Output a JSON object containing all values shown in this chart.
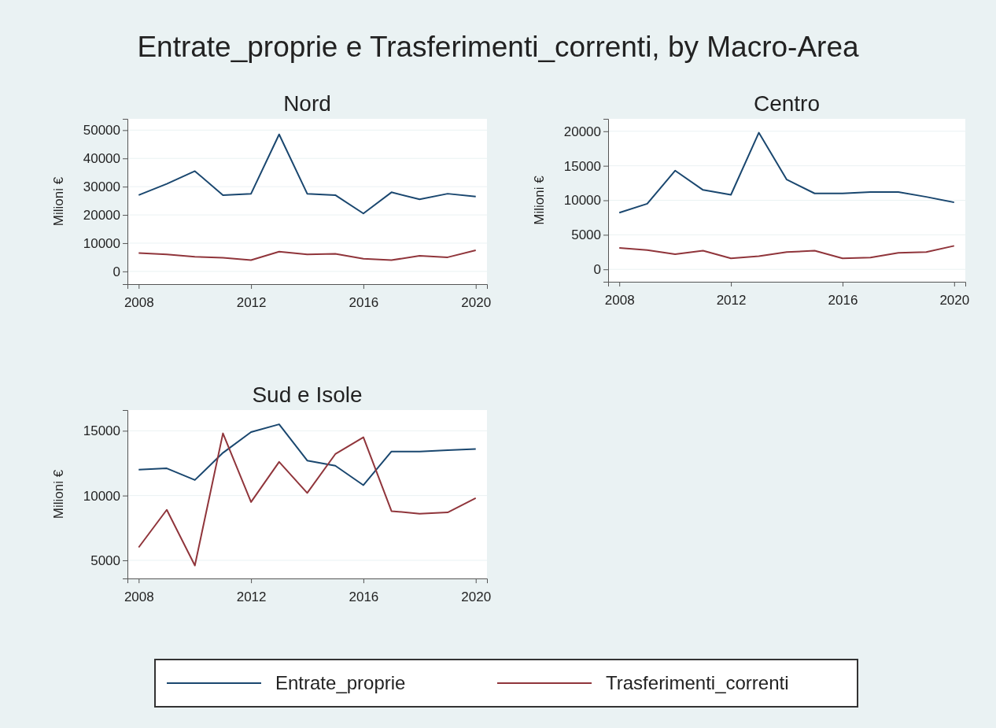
{
  "chart_data": [
    {
      "type": "line",
      "title": "Nord",
      "ylabel": "Milioni €",
      "annotations": [
        "Entrate_proprie e Trasferimenti_correnti, by Macro-Area"
      ],
      "x": [
        2008,
        2009,
        2010,
        2011,
        2012,
        2013,
        2014,
        2015,
        2016,
        2017,
        2018,
        2019,
        2020
      ],
      "xlim": [
        2007.6,
        2020.4
      ],
      "xticks": [
        2008,
        2012,
        2016,
        2020
      ],
      "ylim": [
        -4500,
        54000
      ],
      "yticks": [
        0,
        10000,
        20000,
        30000,
        40000,
        50000
      ],
      "grid": "y",
      "legend": "bottom",
      "series": [
        {
          "name": "Entrate_proprie",
          "color": "#1a476f",
          "values": [
            27000,
            31000,
            35500,
            27000,
            27500,
            48500,
            27500,
            27000,
            20500,
            28000,
            25500,
            27500,
            26500
          ]
        },
        {
          "name": "Trasferimenti_correnti",
          "color": "#90353b",
          "values": [
            6500,
            6000,
            5200,
            4800,
            4000,
            7000,
            6000,
            6200,
            4500,
            4000,
            5500,
            5000,
            7500
          ]
        }
      ]
    },
    {
      "type": "line",
      "title": "Centro",
      "ylabel": "Milioni €",
      "x": [
        2008,
        2009,
        2010,
        2011,
        2012,
        2013,
        2014,
        2015,
        2016,
        2017,
        2018,
        2019,
        2020
      ],
      "xlim": [
        2007.6,
        2020.4
      ],
      "xticks": [
        2008,
        2012,
        2016,
        2020
      ],
      "ylim": [
        -1800,
        21800
      ],
      "yticks": [
        0,
        5000,
        10000,
        15000,
        20000
      ],
      "grid": "y",
      "series": [
        {
          "name": "Entrate_proprie",
          "color": "#1a476f",
          "values": [
            8200,
            9500,
            14300,
            11500,
            10800,
            19800,
            13000,
            11000,
            11000,
            11200,
            11200,
            10500,
            9700
          ]
        },
        {
          "name": "Trasferimenti_correnti",
          "color": "#90353b",
          "values": [
            3100,
            2800,
            2200,
            2700,
            1600,
            1900,
            2500,
            2700,
            1600,
            1700,
            2400,
            2500,
            3400
          ]
        }
      ]
    },
    {
      "type": "line",
      "title": "Sud e Isole",
      "ylabel": "Milioni €",
      "x": [
        2008,
        2009,
        2010,
        2011,
        2012,
        2013,
        2014,
        2015,
        2016,
        2017,
        2018,
        2019,
        2020
      ],
      "xlim": [
        2007.6,
        2020.4
      ],
      "xticks": [
        2008,
        2012,
        2016,
        2020
      ],
      "ylim": [
        3600,
        16600
      ],
      "yticks": [
        5000,
        10000,
        15000
      ],
      "grid": "y",
      "series": [
        {
          "name": "Entrate_proprie",
          "color": "#1a476f",
          "values": [
            12000,
            12100,
            11200,
            13300,
            14900,
            15500,
            12700,
            12300,
            10800,
            13400,
            13400,
            13500,
            13600
          ]
        },
        {
          "name": "Trasferimenti_correnti",
          "color": "#90353b",
          "values": [
            6000,
            8900,
            4600,
            14800,
            9500,
            12600,
            10200,
            13200,
            14500,
            8800,
            8600,
            8700,
            9800
          ]
        }
      ]
    }
  ]
}
